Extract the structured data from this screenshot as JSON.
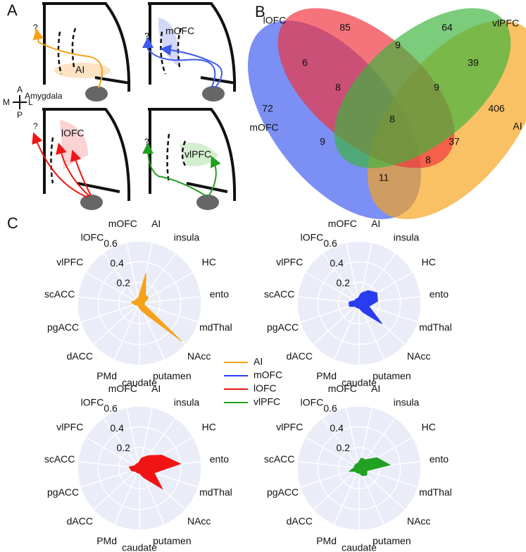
{
  "panel_labels": [
    "A",
    "B",
    "C"
  ],
  "diagram": {
    "compass": {
      "anterior": "A",
      "medial": "M",
      "lateral": "L",
      "posterior": "P"
    },
    "subpanels": [
      {
        "label": "AI",
        "question": "?",
        "amygdala": "Amygdala"
      },
      {
        "label": "mOFC",
        "question": "?"
      },
      {
        "label": "lOFC",
        "question": "?"
      },
      {
        "label": "vlPFC",
        "question": "?"
      }
    ]
  },
  "chart_data": [
    {
      "type": "venn",
      "sets": [
        {
          "name": "lOFC",
          "color": "#f0323c"
        },
        {
          "name": "vlPFC",
          "color": "#3cb43c"
        },
        {
          "name": "mOFC",
          "color": "#3c5af0"
        },
        {
          "name": "AI",
          "color": "#f7a21b"
        }
      ],
      "values": [
        85,
        64,
        9,
        6,
        39,
        8,
        9,
        72,
        8,
        406,
        9,
        37,
        8,
        11
      ]
    },
    {
      "type": "radar",
      "categories": [
        "mOFC",
        "AI",
        "insula",
        "HC",
        "ento",
        "mdThal",
        "NAcc",
        "putamen",
        "caudate",
        "PMd",
        "dACC",
        "pgACC",
        "scACC",
        "vlPFC",
        "lOFC"
      ],
      "rlim": [
        0,
        0.6
      ],
      "rticks": [
        0.2,
        0.4,
        0.6
      ],
      "series": [
        {
          "name": "AI",
          "color": "#f7a21b",
          "values": [
            0.05,
            0.3,
            0.1,
            0.1,
            0.05,
            0.05,
            0.55,
            0.1,
            0.05,
            0.03,
            0.03,
            0.05,
            0.08,
            0.05,
            0.05
          ]
        }
      ]
    },
    {
      "type": "radar",
      "categories": [
        "mOFC",
        "AI",
        "insula",
        "HC",
        "ento",
        "mdThal",
        "NAcc",
        "putamen",
        "caudate",
        "PMd",
        "dACC",
        "pgACC",
        "scACC",
        "vlPFC",
        "lOFC"
      ],
      "rlim": [
        0,
        0.6
      ],
      "rticks": [
        0.2,
        0.4,
        0.6
      ],
      "series": [
        {
          "name": "mOFC",
          "color": "#2a3cf0",
          "values": [
            0.05,
            0.1,
            0.15,
            0.2,
            0.18,
            0.1,
            0.3,
            0.1,
            0.05,
            0.05,
            0.05,
            0.1,
            0.1,
            0.05,
            0.05
          ]
        }
      ]
    },
    {
      "type": "radar",
      "categories": [
        "mOFC",
        "AI",
        "insula",
        "HC",
        "ento",
        "mdThal",
        "NAcc",
        "putamen",
        "caudate",
        "PMd",
        "dACC",
        "pgACC",
        "scACC",
        "vlPFC",
        "lOFC"
      ],
      "rlim": [
        0,
        0.6
      ],
      "rticks": [
        0.2,
        0.4,
        0.6
      ],
      "series": [
        {
          "name": "lOFC",
          "color": "#f01414",
          "values": [
            0.05,
            0.1,
            0.15,
            0.25,
            0.4,
            0.15,
            0.3,
            0.1,
            0.05,
            0.05,
            0.05,
            0.08,
            0.1,
            0.05,
            0.05
          ]
        }
      ]
    },
    {
      "type": "radar",
      "categories": [
        "mOFC",
        "AI",
        "insula",
        "HC",
        "ento",
        "mdThal",
        "NAcc",
        "putamen",
        "caudate",
        "PMd",
        "dACC",
        "pgACC",
        "scACC",
        "vlPFC",
        "lOFC"
      ],
      "rlim": [
        0,
        0.6
      ],
      "rticks": [
        0.2,
        0.4,
        0.6
      ],
      "series": [
        {
          "name": "vlPFC",
          "color": "#22a022",
          "values": [
            0.05,
            0.1,
            0.1,
            0.2,
            0.3,
            0.08,
            0.1,
            0.08,
            0.05,
            0.05,
            0.05,
            0.1,
            0.05,
            0.05,
            0.05
          ]
        }
      ]
    }
  ]
}
